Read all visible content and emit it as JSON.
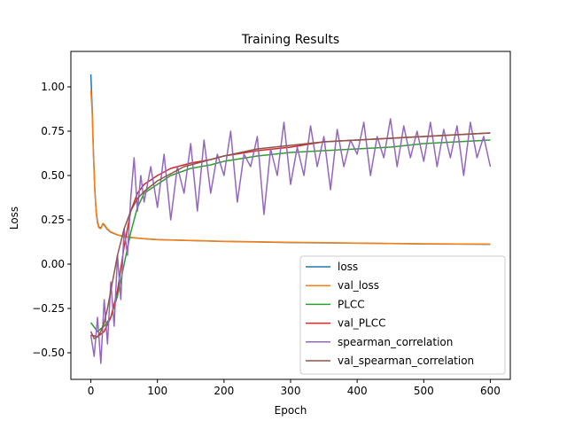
{
  "chart_data": {
    "type": "line",
    "title": "Training Results",
    "xlabel": "Epoch",
    "ylabel": "Loss",
    "xlim": [
      -30,
      630
    ],
    "ylim": [
      -0.65,
      1.2
    ],
    "xticks": [
      0,
      100,
      200,
      300,
      400,
      500,
      600
    ],
    "xtick_labels": [
      "0",
      "100",
      "200",
      "300",
      "400",
      "500",
      "600"
    ],
    "yticks": [
      -0.5,
      -0.25,
      0.0,
      0.25,
      0.5,
      0.75,
      1.0
    ],
    "ytick_labels": [
      "−0.50",
      "−0.25",
      "0.00",
      "0.25",
      "0.50",
      "0.75",
      "1.00"
    ],
    "grid": false,
    "legend_position": "lower-right",
    "series": [
      {
        "name": "loss",
        "color": "#1f77b4",
        "x": [
          0,
          2,
          4,
          6,
          8,
          10,
          12,
          15,
          18,
          20,
          25,
          30,
          40,
          50,
          60,
          80,
          100,
          150,
          200,
          250,
          300,
          350,
          400,
          450,
          500,
          550,
          600
        ],
        "y": [
          1.07,
          0.88,
          0.62,
          0.42,
          0.3,
          0.24,
          0.21,
          0.205,
          0.225,
          0.22,
          0.195,
          0.18,
          0.165,
          0.155,
          0.15,
          0.143,
          0.138,
          0.133,
          0.128,
          0.125,
          0.122,
          0.12,
          0.118,
          0.116,
          0.114,
          0.113,
          0.112
        ]
      },
      {
        "name": "val_loss",
        "color": "#ff7f0e",
        "x": [
          0,
          2,
          4,
          6,
          8,
          10,
          12,
          15,
          18,
          20,
          25,
          30,
          40,
          50,
          60,
          80,
          100,
          150,
          200,
          250,
          300,
          350,
          400,
          450,
          500,
          550,
          600
        ],
        "y": [
          0.98,
          0.85,
          0.6,
          0.41,
          0.29,
          0.23,
          0.205,
          0.2,
          0.23,
          0.225,
          0.198,
          0.182,
          0.166,
          0.156,
          0.151,
          0.144,
          0.139,
          0.134,
          0.129,
          0.126,
          0.123,
          0.121,
          0.119,
          0.117,
          0.115,
          0.114,
          0.113
        ]
      },
      {
        "name": "PLCC",
        "color": "#2ca02c",
        "x": [
          0,
          10,
          20,
          30,
          40,
          50,
          60,
          70,
          80,
          100,
          120,
          150,
          180,
          200,
          250,
          300,
          350,
          400,
          450,
          500,
          550,
          600
        ],
        "y": [
          -0.33,
          -0.38,
          -0.35,
          -0.3,
          -0.18,
          0.0,
          0.18,
          0.32,
          0.4,
          0.45,
          0.5,
          0.54,
          0.56,
          0.58,
          0.61,
          0.63,
          0.64,
          0.65,
          0.66,
          0.68,
          0.69,
          0.7
        ]
      },
      {
        "name": "val_PLCC",
        "color": "#d62728",
        "x": [
          0,
          10,
          20,
          30,
          40,
          50,
          60,
          70,
          80,
          100,
          120,
          150,
          180,
          200,
          250,
          300,
          350,
          400,
          450,
          500,
          550,
          600
        ],
        "y": [
          -0.4,
          -0.41,
          -0.38,
          -0.3,
          -0.15,
          0.1,
          0.3,
          0.4,
          0.45,
          0.5,
          0.54,
          0.57,
          0.59,
          0.61,
          0.64,
          0.66,
          0.69,
          0.7,
          0.71,
          0.72,
          0.73,
          0.74
        ]
      },
      {
        "name": "spearman_correlation",
        "color": "#9467bd",
        "x": [
          0,
          5,
          10,
          15,
          20,
          25,
          30,
          35,
          40,
          45,
          50,
          55,
          60,
          65,
          70,
          75,
          80,
          90,
          100,
          110,
          120,
          130,
          140,
          150,
          160,
          170,
          180,
          190,
          200,
          210,
          220,
          230,
          240,
          250,
          260,
          270,
          280,
          290,
          300,
          310,
          320,
          330,
          340,
          350,
          360,
          370,
          380,
          390,
          400,
          410,
          420,
          430,
          440,
          450,
          460,
          470,
          480,
          490,
          500,
          510,
          520,
          530,
          540,
          550,
          560,
          570,
          580,
          590,
          600
        ],
        "y": [
          -0.4,
          -0.52,
          -0.3,
          -0.56,
          -0.2,
          -0.45,
          -0.1,
          -0.35,
          0.05,
          -0.2,
          0.2,
          0.05,
          0.38,
          0.6,
          0.3,
          0.5,
          0.35,
          0.55,
          0.32,
          0.62,
          0.25,
          0.55,
          0.4,
          0.68,
          0.3,
          0.7,
          0.4,
          0.62,
          0.5,
          0.75,
          0.35,
          0.62,
          0.55,
          0.72,
          0.28,
          0.65,
          0.5,
          0.8,
          0.45,
          0.66,
          0.5,
          0.78,
          0.55,
          0.72,
          0.42,
          0.76,
          0.55,
          0.7,
          0.62,
          0.8,
          0.5,
          0.72,
          0.6,
          0.82,
          0.55,
          0.78,
          0.6,
          0.75,
          0.58,
          0.8,
          0.55,
          0.76,
          0.6,
          0.78,
          0.5,
          0.8,
          0.6,
          0.72,
          0.55
        ]
      },
      {
        "name": "val_spearman_correlation",
        "color": "#8c564b",
        "x": [
          0,
          5,
          10,
          15,
          20,
          25,
          30,
          40,
          50,
          60,
          70,
          80,
          90,
          100,
          120,
          140,
          160,
          180,
          200,
          250,
          300,
          350,
          400,
          450,
          500,
          550,
          600
        ],
        "y": [
          -0.38,
          -0.42,
          -0.41,
          -0.38,
          -0.33,
          -0.25,
          -0.15,
          0.05,
          0.2,
          0.3,
          0.37,
          0.41,
          0.44,
          0.47,
          0.51,
          0.55,
          0.57,
          0.59,
          0.61,
          0.65,
          0.67,
          0.69,
          0.7,
          0.71,
          0.72,
          0.73,
          0.74
        ]
      }
    ]
  }
}
